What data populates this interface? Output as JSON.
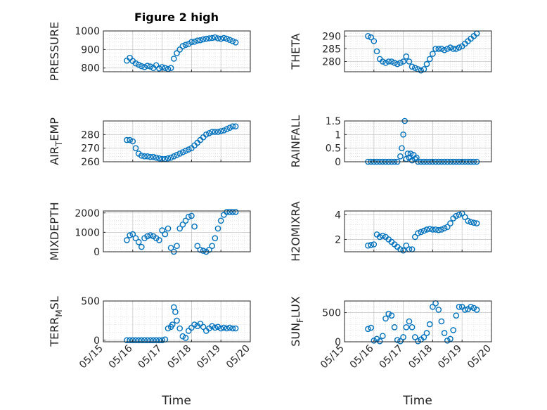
{
  "figure_title": "Figure 2 high",
  "marker_color": "#0072BD",
  "chart_data": [
    {
      "type": "scatter",
      "ylabel": "PRESSURE",
      "title": "Figure 2 high",
      "xlim": [
        0,
        5
      ],
      "ylim": [
        780,
        1000
      ],
      "yticks": [
        800,
        900,
        1000
      ],
      "x": [
        0.8,
        0.9,
        1.0,
        1.1,
        1.2,
        1.3,
        1.4,
        1.5,
        1.6,
        1.7,
        1.8,
        1.9,
        2.0,
        2.1,
        2.2,
        2.3,
        2.4,
        2.5,
        2.6,
        2.7,
        2.8,
        2.9,
        3.0,
        3.1,
        3.2,
        3.3,
        3.4,
        3.5,
        3.6,
        3.7,
        3.8,
        3.9,
        4.0,
        4.1,
        4.2,
        4.3,
        4.4,
        4.5
      ],
      "y": [
        840,
        855,
        838,
        825,
        818,
        810,
        805,
        812,
        808,
        800,
        815,
        798,
        805,
        800,
        795,
        800,
        850,
        880,
        900,
        918,
        925,
        930,
        940,
        942,
        948,
        950,
        955,
        958,
        960,
        962,
        965,
        960,
        958,
        962,
        958,
        952,
        945,
        938
      ]
    },
    {
      "type": "scatter",
      "ylabel": "THETA",
      "xlim": [
        0,
        5
      ],
      "ylim": [
        276,
        292
      ],
      "yticks": [
        280,
        285,
        290
      ],
      "x": [
        0.8,
        0.9,
        1.0,
        1.1,
        1.2,
        1.3,
        1.4,
        1.5,
        1.6,
        1.7,
        1.8,
        1.9,
        2.0,
        2.1,
        2.2,
        2.3,
        2.4,
        2.5,
        2.6,
        2.7,
        2.8,
        2.9,
        3.0,
        3.1,
        3.2,
        3.3,
        3.4,
        3.5,
        3.6,
        3.7,
        3.8,
        3.9,
        4.0,
        4.1,
        4.2,
        4.3,
        4.4,
        4.5
      ],
      "y": [
        290,
        289.5,
        288,
        284,
        281,
        280,
        279.5,
        280,
        280,
        279.5,
        279,
        279.5,
        280,
        282,
        280,
        278,
        277.5,
        277,
        276.5,
        277,
        279,
        281,
        283,
        285,
        285,
        285,
        284.5,
        285,
        285.5,
        285,
        285,
        285.5,
        286,
        287,
        288,
        289,
        290,
        291
      ]
    },
    {
      "type": "scatter",
      "ylabel": "AIR_TEMP",
      "ylabel_main": "AIR",
      "ylabel_sub": "T",
      "ylabel_rest": "EMP",
      "xlim": [
        0,
        5
      ],
      "ylim": [
        260,
        290
      ],
      "yticks": [
        260,
        270,
        280
      ],
      "x": [
        0.8,
        0.9,
        1.0,
        1.1,
        1.2,
        1.3,
        1.4,
        1.5,
        1.6,
        1.7,
        1.8,
        1.9,
        2.0,
        2.1,
        2.2,
        2.3,
        2.4,
        2.5,
        2.6,
        2.7,
        2.8,
        2.9,
        3.0,
        3.1,
        3.2,
        3.3,
        3.4,
        3.5,
        3.6,
        3.7,
        3.8,
        3.9,
        4.0,
        4.1,
        4.2,
        4.3,
        4.4,
        4.5
      ],
      "y": [
        276,
        276,
        275,
        270,
        266,
        264.5,
        264,
        264,
        263.5,
        263.5,
        263,
        262.5,
        262,
        262,
        262.5,
        263,
        264,
        265,
        266,
        267,
        268,
        269,
        270,
        272,
        274,
        276,
        278,
        280,
        281,
        282,
        282,
        282,
        282.5,
        283,
        284,
        285,
        286,
        286
      ]
    },
    {
      "type": "scatter",
      "ylabel": "RAINFALL",
      "xlim": [
        0,
        5
      ],
      "ylim": [
        0,
        1.5
      ],
      "yticks": [
        0,
        0.5,
        1,
        1.5
      ],
      "x": [
        0.8,
        0.9,
        1.0,
        1.1,
        1.2,
        1.3,
        1.4,
        1.5,
        1.6,
        1.7,
        1.8,
        1.9,
        1.95,
        2.0,
        2.05,
        2.1,
        2.15,
        2.2,
        2.25,
        2.3,
        2.35,
        2.4,
        2.45,
        2.5,
        2.6,
        2.7,
        2.8,
        2.9,
        3.0,
        3.1,
        3.2,
        3.3,
        3.4,
        3.5,
        3.6,
        3.7,
        3.8,
        3.9,
        4.0,
        4.1,
        4.2,
        4.3,
        4.4,
        4.5
      ],
      "y": [
        0,
        0,
        0,
        0,
        0,
        0,
        0,
        0,
        0,
        0,
        0,
        0.2,
        0.5,
        1.0,
        1.5,
        0.1,
        0.3,
        0.15,
        0.3,
        0.05,
        0.25,
        0.1,
        0.15,
        0,
        0,
        0,
        0,
        0,
        0,
        0,
        0,
        0,
        0,
        0,
        0,
        0,
        0,
        0,
        0,
        0,
        0,
        0,
        0,
        0
      ]
    },
    {
      "type": "scatter",
      "ylabel": "MIXDEPTH",
      "xlim": [
        0,
        5
      ],
      "ylim": [
        0,
        2100
      ],
      "yticks": [
        0,
        1000,
        2000
      ],
      "x": [
        0.8,
        0.9,
        1.0,
        1.1,
        1.2,
        1.3,
        1.4,
        1.5,
        1.6,
        1.7,
        1.8,
        1.9,
        2.0,
        2.1,
        2.2,
        2.3,
        2.4,
        2.5,
        2.6,
        2.7,
        2.8,
        2.9,
        3.0,
        3.1,
        3.2,
        3.3,
        3.4,
        3.5,
        3.6,
        3.7,
        3.8,
        3.9,
        4.0,
        4.1,
        4.2,
        4.3,
        4.4,
        4.5
      ],
      "y": [
        600,
        850,
        900,
        700,
        500,
        250,
        700,
        800,
        850,
        800,
        700,
        600,
        1100,
        900,
        1200,
        200,
        0,
        300,
        1200,
        1400,
        1600,
        1800,
        1850,
        1300,
        300,
        100,
        50,
        0,
        100,
        300,
        700,
        1200,
        1600,
        1900,
        2050,
        2050,
        2050,
        2050
      ]
    },
    {
      "type": "scatter",
      "ylabel": "H2OMIXRA",
      "xlim": [
        0,
        5
      ],
      "ylim": [
        1,
        4.3
      ],
      "yticks": [
        2,
        4
      ],
      "x": [
        0.8,
        0.9,
        1.0,
        1.1,
        1.2,
        1.3,
        1.4,
        1.5,
        1.6,
        1.7,
        1.8,
        1.9,
        2.0,
        2.1,
        2.2,
        2.3,
        2.4,
        2.5,
        2.6,
        2.7,
        2.8,
        2.9,
        3.0,
        3.1,
        3.2,
        3.3,
        3.4,
        3.5,
        3.6,
        3.7,
        3.8,
        3.9,
        4.0,
        4.1,
        4.2,
        4.3,
        4.4,
        4.5
      ],
      "y": [
        1.5,
        1.55,
        1.6,
        2.4,
        2.2,
        2.3,
        2.2,
        2.0,
        1.8,
        1.6,
        1.4,
        1.2,
        1.1,
        1.5,
        1.2,
        1.2,
        2.2,
        2.5,
        2.6,
        2.7,
        2.8,
        2.85,
        2.8,
        2.8,
        2.75,
        2.8,
        2.9,
        3.0,
        3.3,
        3.7,
        3.9,
        4.0,
        4.1,
        3.8,
        3.5,
        3.4,
        3.35,
        3.3
      ]
    },
    {
      "type": "scatter",
      "ylabel": "TERR_MSL",
      "ylabel_main": "TERR",
      "ylabel_sub": "M",
      "ylabel_rest": "SL",
      "xlim": [
        0,
        5
      ],
      "ylim": [
        -20,
        500
      ],
      "yticks": [
        0,
        500
      ],
      "x": [
        0.8,
        0.9,
        1.0,
        1.1,
        1.2,
        1.3,
        1.4,
        1.5,
        1.6,
        1.7,
        1.8,
        1.9,
        2.0,
        2.1,
        2.2,
        2.3,
        2.35,
        2.4,
        2.45,
        2.5,
        2.6,
        2.7,
        2.8,
        2.9,
        3.0,
        3.1,
        3.2,
        3.3,
        3.4,
        3.5,
        3.6,
        3.7,
        3.8,
        3.9,
        4.0,
        4.1,
        4.2,
        4.3,
        4.4,
        4.5
      ],
      "y": [
        0,
        0,
        0,
        0,
        0,
        0,
        0,
        0,
        0,
        0,
        0,
        0,
        0,
        10,
        150,
        170,
        200,
        420,
        360,
        250,
        150,
        50,
        30,
        120,
        160,
        200,
        180,
        210,
        170,
        120,
        150,
        180,
        160,
        170,
        150,
        160,
        150,
        160,
        150,
        150
      ]
    },
    {
      "type": "scatter",
      "ylabel": "SUN_FLUX",
      "ylabel_main": "SUN",
      "ylabel_sub": "F",
      "ylabel_rest": "LUX",
      "xlim": [
        0,
        5
      ],
      "ylim": [
        0,
        700
      ],
      "yticks": [
        0,
        500
      ],
      "x": [
        0.8,
        0.9,
        1.0,
        1.1,
        1.2,
        1.3,
        1.4,
        1.5,
        1.6,
        1.7,
        1.8,
        1.9,
        2.0,
        2.1,
        2.2,
        2.3,
        2.4,
        2.5,
        2.6,
        2.7,
        2.8,
        2.9,
        3.0,
        3.1,
        3.2,
        3.3,
        3.4,
        3.5,
        3.6,
        3.7,
        3.8,
        3.9,
        4.0,
        4.1,
        4.2,
        4.3,
        4.4,
        4.5
      ],
      "y": [
        220,
        240,
        20,
        50,
        10,
        100,
        400,
        480,
        450,
        250,
        30,
        10,
        80,
        250,
        350,
        250,
        80,
        10,
        40,
        80,
        150,
        300,
        600,
        660,
        550,
        350,
        150,
        20,
        50,
        200,
        450,
        600,
        600,
        550,
        560,
        600,
        580,
        550
      ]
    }
  ],
  "x_ticklabels": [
    "05/15",
    "05/16",
    "05/17",
    "05/18",
    "05/19",
    "05/20"
  ],
  "xlabel": "Time"
}
